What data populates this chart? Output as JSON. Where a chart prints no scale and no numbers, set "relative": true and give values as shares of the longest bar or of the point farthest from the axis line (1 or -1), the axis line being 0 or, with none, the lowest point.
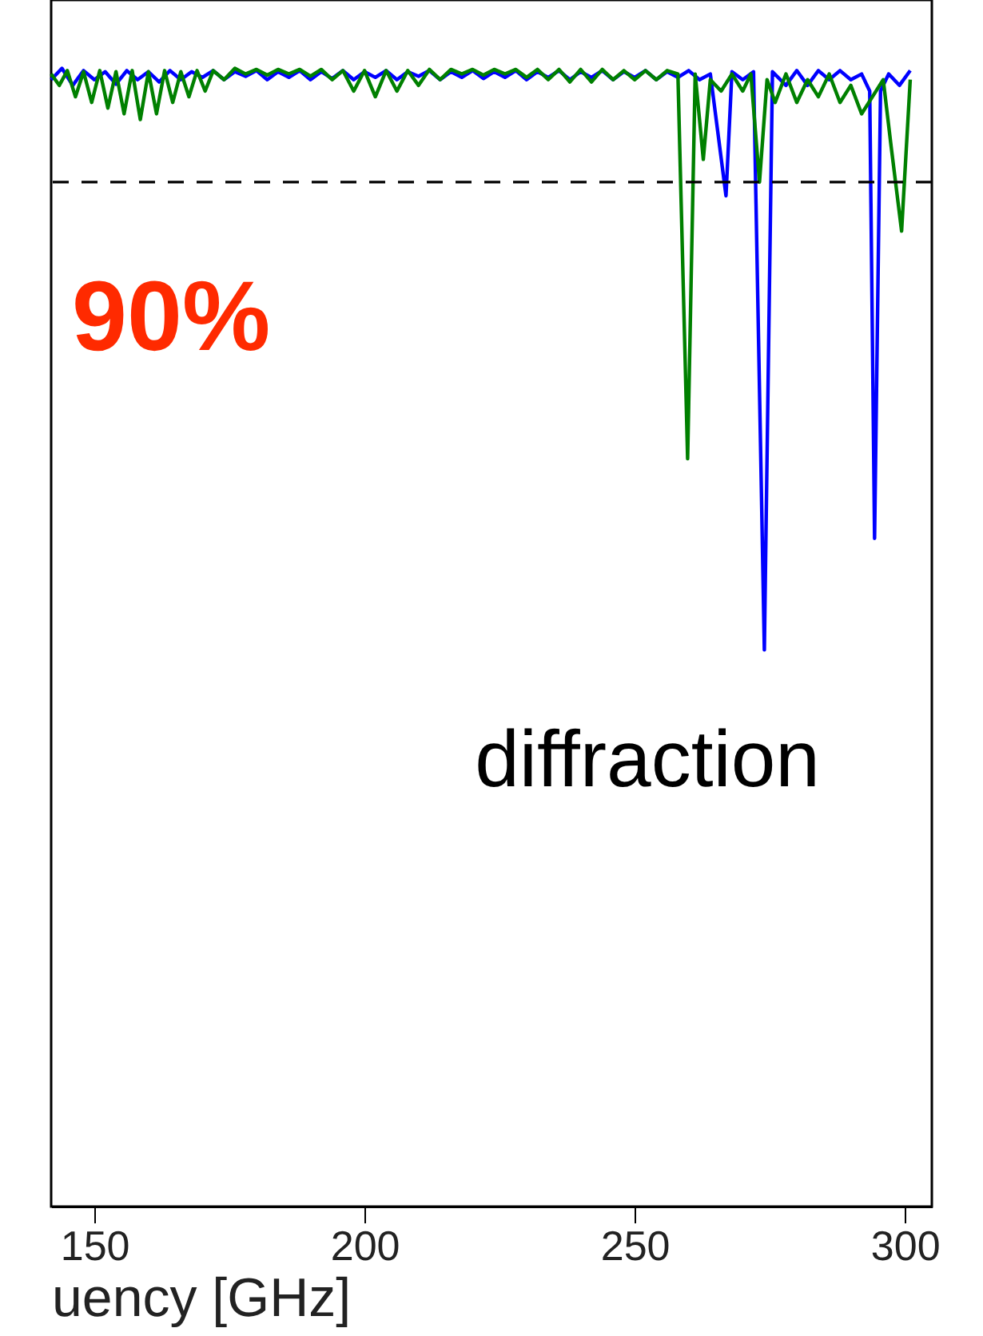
{
  "chart_data": {
    "type": "line",
    "relative": true,
    "xlabel": "uency [GHz]",
    "xlim": [
      142,
      305
    ],
    "xticks": [
      150,
      200,
      250,
      300
    ],
    "grid": false,
    "marker": "none",
    "line_style": "solid",
    "annotations": [
      "90%",
      "diffraction"
    ],
    "ref_lines": [
      {
        "axis": "y",
        "value": 0.9,
        "color": "#000000",
        "line_style": "dashed"
      }
    ],
    "series": [
      {
        "color": "#0000ff",
        "x": [
          142,
          144,
          146,
          148,
          150,
          152,
          154,
          156,
          158,
          160,
          162,
          164,
          166,
          168,
          170,
          172,
          174,
          176,
          178,
          180,
          182,
          184,
          186,
          188,
          190,
          192,
          194,
          196,
          198,
          200,
          202,
          204,
          206,
          208,
          210,
          212,
          214,
          216,
          218,
          220,
          222,
          224,
          226,
          228,
          230,
          232,
          234,
          236,
          238,
          240,
          242,
          244,
          246,
          248,
          250,
          252,
          254,
          256,
          258,
          260,
          262,
          264,
          266.9,
          268,
          270,
          272,
          274,
          275.5,
          278,
          280,
          282,
          284,
          286,
          288,
          290,
          292,
          293.5,
          294.4,
          295.5,
          297,
          299,
          301
        ],
        "values": [
          0.99,
          1,
          0.985,
          0.998,
          0.99,
          0.997,
          0.986,
          0.998,
          0.99,
          0.997,
          0.988,
          0.998,
          0.99,
          0.997,
          0.992,
          0.998,
          0.99,
          0.997,
          0.993,
          0.998,
          0.99,
          0.997,
          0.992,
          0.998,
          0.99,
          0.997,
          0.991,
          0.998,
          0.99,
          0.997,
          0.992,
          0.998,
          0.99,
          0.997,
          0.993,
          0.998,
          0.99,
          0.997,
          0.992,
          0.998,
          0.991,
          0.997,
          0.992,
          0.998,
          0.99,
          0.997,
          0.992,
          0.998,
          0.99,
          0.997,
          0.992,
          0.998,
          0.99,
          0.997,
          0.992,
          0.998,
          0.99,
          0.997,
          0.992,
          0.998,
          0.99,
          0.995,
          0.888,
          0.997,
          0.99,
          0.997,
          0.489,
          0.997,
          0.985,
          0.998,
          0.985,
          0.998,
          0.99,
          0.998,
          0.99,
          0.995,
          0.98,
          0.587,
          0.98,
          0.995,
          0.985,
          0.998
        ]
      },
      {
        "color": "#008000",
        "x": [
          142,
          143.5,
          145,
          146.5,
          148,
          149.5,
          151,
          152.5,
          154,
          155.5,
          157,
          158.5,
          160,
          161.5,
          163,
          164.5,
          166,
          167.5,
          169,
          170.5,
          172,
          174,
          176,
          178,
          180,
          182,
          184,
          186,
          188,
          190,
          192,
          194,
          196,
          198,
          200,
          202,
          204,
          206,
          208,
          210,
          212,
          214,
          216,
          218,
          220,
          222,
          224,
          226,
          228,
          230,
          232,
          234,
          236,
          238,
          240,
          242,
          244,
          246,
          248,
          250,
          252,
          254,
          256,
          258,
          259.8,
          261.2,
          262.7,
          264,
          266,
          268,
          270,
          271.5,
          273.1,
          274.5,
          276,
          278,
          280,
          282,
          284,
          286,
          288,
          290,
          292,
          294,
          296,
          297.5,
          299.4,
          301
        ],
        "values": [
          0.995,
          0.985,
          0.998,
          0.975,
          0.997,
          0.97,
          0.998,
          0.965,
          0.997,
          0.96,
          0.998,
          0.955,
          0.997,
          0.96,
          0.998,
          0.97,
          0.997,
          0.975,
          0.998,
          0.98,
          0.998,
          0.99,
          1,
          0.995,
          0.999,
          0.994,
          0.999,
          0.995,
          0.999,
          0.993,
          0.999,
          0.99,
          0.998,
          0.98,
          0.998,
          0.975,
          0.998,
          0.98,
          0.998,
          0.985,
          0.999,
          0.99,
          0.999,
          0.995,
          0.999,
          0.994,
          0.999,
          0.995,
          0.999,
          0.992,
          0.999,
          0.99,
          0.999,
          0.988,
          0.999,
          0.988,
          0.999,
          0.99,
          0.998,
          0.99,
          0.998,
          0.99,
          0.998,
          0.995,
          0.657,
          0.995,
          0.92,
          0.99,
          0.98,
          0.995,
          0.98,
          0.995,
          0.9,
          0.99,
          0.97,
          0.995,
          0.97,
          0.99,
          0.975,
          0.995,
          0.97,
          0.985,
          0.96,
          0.975,
          0.99,
          0.93,
          0.857,
          0.99
        ]
      }
    ]
  }
}
